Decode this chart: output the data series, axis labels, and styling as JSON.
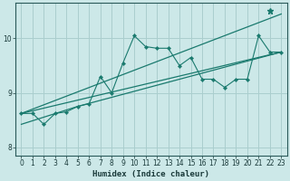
{
  "xlabel": "Humidex (Indice chaleur)",
  "bg_color": "#cce8e8",
  "line_color": "#1a7a6e",
  "grid_color": "#aacece",
  "xlim": [
    -0.5,
    23.5
  ],
  "ylim": [
    7.85,
    10.65
  ],
  "xticks": [
    0,
    1,
    2,
    3,
    4,
    5,
    6,
    7,
    8,
    9,
    10,
    11,
    12,
    13,
    14,
    15,
    16,
    17,
    18,
    19,
    20,
    21,
    22,
    23
  ],
  "yticks": [
    8,
    9,
    10
  ],
  "main_line": {
    "x": [
      0,
      1,
      2,
      3,
      4,
      5,
      6,
      7,
      8,
      9,
      10,
      11,
      12,
      13,
      14,
      15,
      16,
      17,
      18,
      19,
      20,
      21,
      22,
      23
    ],
    "y": [
      8.62,
      8.62,
      8.42,
      8.62,
      8.65,
      8.75,
      8.8,
      9.3,
      9.0,
      9.55,
      10.05,
      9.85,
      9.82,
      9.82,
      9.5,
      9.65,
      9.25,
      9.25,
      9.1,
      9.25,
      9.25,
      10.05,
      9.75,
      9.75
    ]
  },
  "star_point": [
    22,
    10.5
  ],
  "envelope_lines": [
    {
      "x": [
        0,
        23
      ],
      "y": [
        8.62,
        10.45
      ]
    },
    {
      "x": [
        0,
        23
      ],
      "y": [
        8.62,
        9.75
      ]
    },
    {
      "x": [
        0,
        5,
        23
      ],
      "y": [
        8.42,
        8.75,
        9.75
      ]
    }
  ]
}
